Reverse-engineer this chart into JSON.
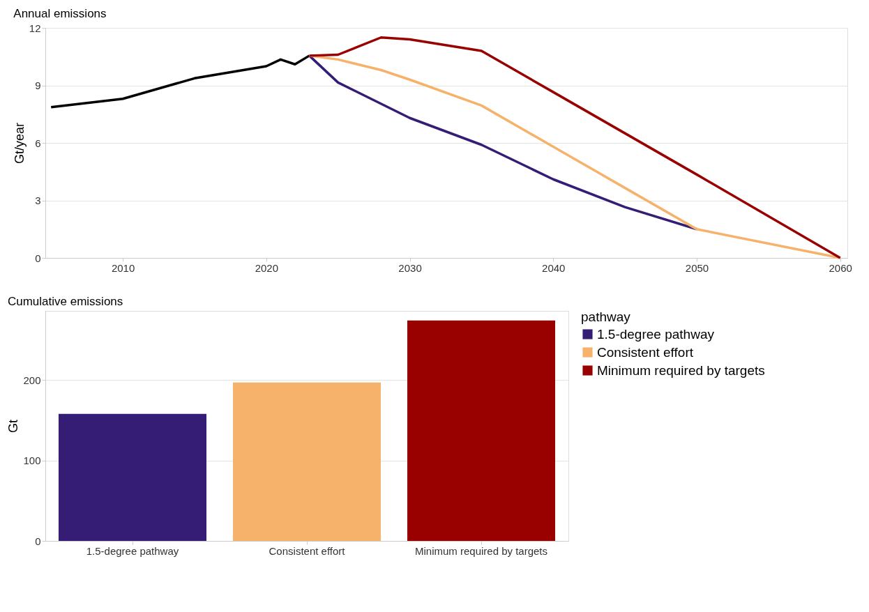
{
  "chart_data": [
    {
      "type": "line",
      "title": "Annual emissions",
      "ylabel": "Gt/year",
      "xlim": [
        2004.6,
        2060.5
      ],
      "xticks": [
        2010,
        2020,
        2030,
        2040,
        2050,
        2060
      ],
      "ylim": [
        0,
        12
      ],
      "yticks": [
        0,
        3,
        6,
        9,
        12
      ],
      "grid": "y",
      "legend": false,
      "series": [
        {
          "color": "#000000",
          "x": [
            2005,
            2010,
            2015,
            2020,
            2021,
            2022,
            2023
          ],
          "values": [
            7.86,
            8.3,
            9.37,
            10.0,
            10.35,
            10.1,
            10.55
          ]
        },
        {
          "color": "#351c75",
          "x": [
            2023,
            2025,
            2030,
            2035,
            2040,
            2045,
            2050
          ],
          "values": [
            10.55,
            9.15,
            7.3,
            5.9,
            4.1,
            2.65,
            1.5
          ]
        },
        {
          "color": "#f6b26b",
          "x": [
            2023,
            2025,
            2028,
            2030,
            2035,
            2040,
            2045,
            2050,
            2060
          ],
          "values": [
            10.55,
            10.35,
            9.8,
            9.3,
            7.95,
            5.8,
            3.65,
            1.5,
            0
          ]
        },
        {
          "color": "#990000",
          "x": [
            2023,
            2025,
            2028,
            2030,
            2035,
            2040,
            2050,
            2060
          ],
          "values": [
            10.55,
            10.6,
            11.5,
            11.4,
            10.8,
            8.65,
            4.35,
            0
          ]
        }
      ]
    },
    {
      "type": "bar",
      "title": "Cumulative emissions",
      "ylabel": "Gt",
      "categories": [
        "1.5-degree pathway",
        "Consistent effort",
        "Minimum required by targets"
      ],
      "series": [
        {
          "name": "1.5-degree pathway",
          "color": "#351c75",
          "values": [
            158,
            null,
            null
          ]
        },
        {
          "name": "Consistent effort",
          "color": "#f6b26b",
          "values": [
            null,
            197,
            null
          ]
        },
        {
          "name": "Minimum required by targets",
          "color": "#990000",
          "values": [
            null,
            null,
            274
          ]
        }
      ],
      "ylim": [
        0,
        286
      ],
      "yticks": [
        0,
        100,
        200
      ],
      "grid": "y",
      "legend": "right",
      "legend_title": "pathway"
    }
  ]
}
